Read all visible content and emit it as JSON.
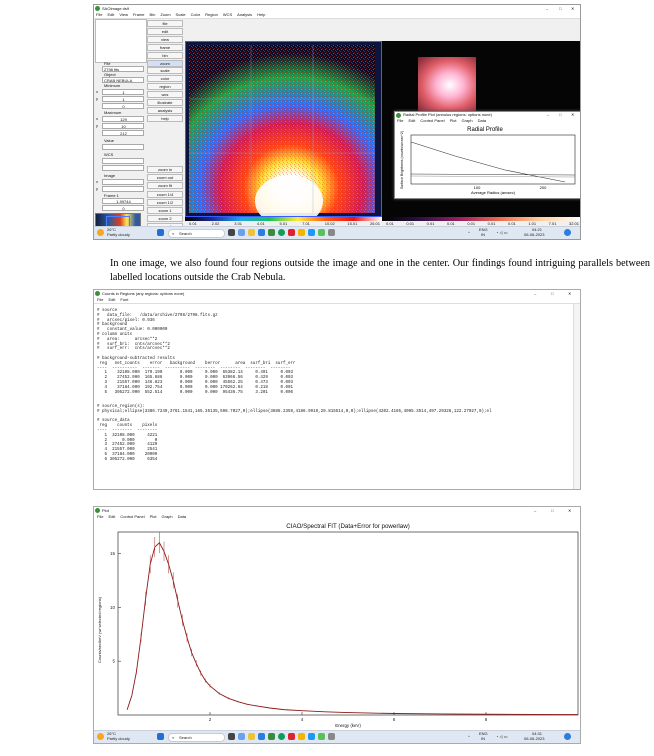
{
  "ds9": {
    "title": "SAOImage ds9",
    "menu": [
      "File",
      "Edit",
      "View",
      "Frame",
      "Bin",
      "Zoom",
      "Scale",
      "Color",
      "Region",
      "WCS",
      "Analysis",
      "Help"
    ],
    "info_labels": {
      "file": "File",
      "object": "Object",
      "value": "Value",
      "wcs": "WCS",
      "image": "Image",
      "frame": "Frame 1",
      "minimum": "Minimum",
      "maximum": "Maximum"
    },
    "info_values": {
      "file": "2798 fits",
      "object": "CRAB NEBULA",
      "min_x": "1",
      "min_y": "1",
      "min_v": "0",
      "max_x": "129",
      "max_y": "10",
      "max_v": "212",
      "frame_zoom": "1.99744",
      "frame_angle": "0"
    },
    "axis_labels": [
      "x",
      "y",
      "x",
      "y",
      "x",
      "y"
    ],
    "buttons_top": [
      "file",
      "edit",
      "view",
      "frame",
      "bin",
      "zoom",
      "scale",
      "color",
      "region",
      "wcs",
      "illustrate",
      "analysis",
      "help"
    ],
    "buttons_bottom": [
      "zoom in",
      "zoom out",
      "zoom fit",
      "zoom 1/4",
      "zoom 1/2",
      "zoom 1",
      "zoom 2",
      "zoom 4"
    ],
    "colorbar_ticks": [
      "0.01",
      "2.02",
      "3.01",
      "4.01",
      "5.01",
      "7.01",
      "10.02",
      "15.01",
      "26.01"
    ],
    "colorbar2_ticks": [
      "0.01",
      "0.01",
      "0.01",
      "0.01",
      "0.01",
      "0.01",
      "0.01",
      "1.01",
      "7.01",
      "32.01"
    ]
  },
  "radial": {
    "title": "Radial Profile Plot (annulus regions: options none)",
    "menu": [
      "File",
      "Edit",
      "Control Panel",
      "Plot",
      "Graph",
      "Data"
    ],
    "plot_title": "Radial Profile",
    "xlabel": "Average Radius (arcsec)",
    "ylabel": "Surface Brightness (counts/arcsec^2)",
    "xticks": [
      "100",
      "200"
    ]
  },
  "taskbar1": {
    "weather_temp": "26°C",
    "weather_desc": "Partly cloudy",
    "search": "Search",
    "lang1": "ENG",
    "lang2": "IN",
    "time": "04:21",
    "date": "06-06-2023"
  },
  "caption": "In one image, we also found four regions outside the image and one in the center. Our findings found intriguing parallels between labelled locations outside the Crab Nebula.",
  "counts": {
    "title": "Counts in Regions (any regions: options none)",
    "menu": [
      "File",
      "Edit",
      "Font"
    ],
    "text": "# source\n#   data_file:   /data/archive/2798/2798.fits.gz\n#   arcsec/pixel: 0.936\n# background\n#   constant_value: 0.000000\n# column units\n#   area:      arcsec**2\n#   surf_bri:  cnts/arcsec**2\n#   surf_err:  cnts/arcsec**2\n\n# background-subtracted results\n reg   net_counts    error   background    berror      area  surf_bri  surf_err\n----  ----------  -------  ----------  --------  --------  --------  --------\n   1    32108.000  179.190       0.000     0.000  65382.14     0.491     0.003\n   2    27452.000  165.686       0.000     0.000  63966.56     0.429     0.003\n   3    21557.000  146.823       0.000     0.000  45562.25     0.473     0.003\n   4    37184.000  192.754       0.000     0.000 170262.64     0.218     0.001\n   5   305272.000  552.514       0.000     0.000  95436.75     3.201     0.006\n\n\n# source_region(s):\n# physical;ellipse(3386.7249,3761.1541,165.35135,598.7027,0);ellipse(3685.2359,4186.9919,29.815514,0,0);ellipse(4202.4165,4095.3514,497.29328,122.27027,0);el\n\n# source_data\n reg    counts    pixels\n----  --------  --------\n   1  32108.000     4221\n   2      0.000        0\n   3  27452.000     4129\n   4  21557.000     2541\n   5  37184.000    20909\n   6 305272.000     6354"
  },
  "plot": {
    "title": "Plot",
    "menu": [
      "File",
      "Edit",
      "Control Panel",
      "Plot",
      "Graph",
      "Data"
    ],
    "plot_title": "CIAO/Spectral FIT (Data+Error for powerlaw)",
    "xlabel": "Energy (keV)",
    "ylabel": "Counts/sec/keV (w/ selected regions)"
  },
  "chart_data": {
    "type": "line",
    "title": "CIAO/Spectral FIT (Data+Error for powerlaw)",
    "xlabel": "Energy (keV)",
    "ylabel": "Counts/sec/keV (w/ selected regions)",
    "xlim": [
      0,
      10
    ],
    "ylim": [
      0,
      17
    ],
    "xticks": [
      "2",
      "4",
      "6",
      "8"
    ],
    "yticks": [
      "5",
      "10",
      "15"
    ],
    "x": [
      0.2,
      0.3,
      0.4,
      0.5,
      0.6,
      0.7,
      0.8,
      0.9,
      1.0,
      1.1,
      1.2,
      1.3,
      1.4,
      1.5,
      1.6,
      1.7,
      1.8,
      1.9,
      2.0,
      2.2,
      2.4,
      2.6,
      2.8,
      3.0,
      3.3,
      3.6,
      4.0,
      4.5,
      5.0,
      5.5,
      6.0,
      7.0,
      8.0,
      9.0,
      10.0
    ],
    "y": [
      0.5,
      1.8,
      4.0,
      7.2,
      10.8,
      14.0,
      15.6,
      16.0,
      15.2,
      14.0,
      12.5,
      10.6,
      8.8,
      7.2,
      5.8,
      4.8,
      3.9,
      3.2,
      2.7,
      2.0,
      1.55,
      1.25,
      1.0,
      0.85,
      0.65,
      0.5,
      0.4,
      0.3,
      0.23,
      0.18,
      0.14,
      0.1,
      0.07,
      0.05,
      0.04
    ]
  },
  "taskbar2": {
    "weather_temp": "26°C",
    "weather_desc": "Partly cloudy",
    "search": "Search",
    "lang1": "ENG",
    "lang2": "IN",
    "time": "04:31",
    "date": "06-06-2023"
  }
}
